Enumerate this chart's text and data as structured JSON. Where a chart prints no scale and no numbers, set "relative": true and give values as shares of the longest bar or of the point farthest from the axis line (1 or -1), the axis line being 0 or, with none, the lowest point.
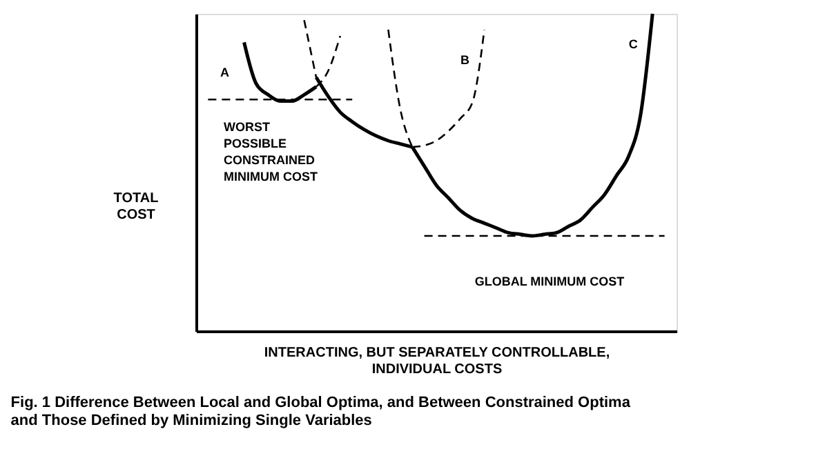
{
  "chart_data": {
    "type": "line",
    "relative": true,
    "title": "Fig. 1  Difference Between Local and Global Optima, and Between Constrained Optima\n          and Those Defined by Minimizing Single Variables",
    "xlabel": "INTERACTING, BUT SEPARATELY CONTROLLABLE,\nINDIVIDUAL COSTS",
    "ylabel": "TOTAL\nCOST",
    "tick_labels": false,
    "grid": false,
    "annotations": [
      "WORST\nPOSSIBLE\nCONSTRAINED\nMINIMUM COST",
      "GLOBAL MINIMUM COST"
    ],
    "categories": [
      null,
      null,
      null,
      null,
      null,
      null,
      null,
      null,
      null,
      null,
      null,
      null,
      null,
      null,
      null,
      null,
      null,
      null,
      null,
      null,
      null,
      null,
      null,
      null,
      null,
      null,
      null,
      null,
      null,
      null,
      null,
      null,
      null,
      null,
      null,
      null,
      null,
      null,
      null,
      null,
      null
    ],
    "series": [
      {
        "name": "A",
        "color": "#000000",
        "line_style": "solid",
        "values": [
          null,
          null,
          null,
          null,
          0.91,
          0.78,
          0.745,
          0.725,
          0.725,
          0.745,
          0.77,
          null,
          null,
          null,
          null,
          null,
          null,
          null,
          null,
          null,
          null,
          null,
          null,
          null,
          null,
          null,
          null,
          null,
          null,
          null,
          null,
          null,
          null,
          null,
          null,
          null,
          null,
          null,
          null,
          null,
          null
        ]
      },
      {
        "color": "#000000",
        "line_style": "dashed",
        "values": [
          null,
          null,
          null,
          null,
          null,
          null,
          null,
          null,
          null,
          null,
          0.77,
          0.82,
          0.93,
          null,
          null,
          null,
          null,
          null,
          null,
          null,
          null,
          null,
          null,
          null,
          null,
          null,
          null,
          null,
          null,
          null,
          null,
          null,
          null,
          null,
          null,
          null,
          null,
          null,
          null,
          null,
          null
        ]
      },
      {
        "color": "#000000",
        "line_style": "dashed",
        "values": [
          null,
          null,
          null,
          null,
          null,
          null,
          null,
          null,
          null,
          0.98,
          0.8,
          null,
          null,
          null,
          null,
          null,
          null,
          null,
          null,
          null,
          null,
          null,
          null,
          null,
          null,
          null,
          null,
          null,
          null,
          null,
          null,
          null,
          null,
          null,
          null,
          null,
          null,
          null,
          null,
          null,
          null
        ]
      },
      {
        "color": "#000000",
        "line_style": "solid",
        "values": [
          null,
          null,
          null,
          null,
          null,
          null,
          null,
          null,
          null,
          null,
          0.8,
          0.74,
          0.69,
          0.66,
          0.635,
          0.615,
          0.6,
          0.59,
          0.58,
          null,
          null,
          null,
          null,
          null,
          null,
          null,
          null,
          null,
          null,
          null,
          null,
          null,
          null,
          null,
          null,
          null,
          null,
          null,
          null,
          null,
          null
        ]
      },
      {
        "name": "B",
        "color": "#000000",
        "line_style": "dashed",
        "values": [
          null,
          null,
          null,
          null,
          null,
          null,
          null,
          null,
          null,
          null,
          null,
          null,
          null,
          null,
          null,
          null,
          null,
          null,
          0.58,
          0.585,
          0.6,
          0.63,
          0.67,
          0.72,
          0.95,
          null,
          null,
          null,
          null,
          null,
          null,
          null,
          null,
          null,
          null,
          null,
          null,
          null,
          null,
          null,
          null
        ]
      },
      {
        "color": "#000000",
        "line_style": "dashed",
        "values": [
          null,
          null,
          null,
          null,
          null,
          null,
          null,
          null,
          null,
          null,
          null,
          null,
          null,
          null,
          null,
          null,
          0.95,
          0.7,
          0.58,
          null,
          null,
          null,
          null,
          null,
          null,
          null,
          null,
          null,
          null,
          null,
          null,
          null,
          null,
          null,
          null,
          null,
          null,
          null,
          null,
          null,
          null
        ]
      },
      {
        "name": "C",
        "color": "#000000",
        "line_style": "solid",
        "values": [
          null,
          null,
          null,
          null,
          null,
          null,
          null,
          null,
          null,
          null,
          null,
          null,
          null,
          null,
          null,
          null,
          null,
          null,
          0.58,
          0.52,
          0.46,
          0.42,
          0.38,
          0.355,
          0.34,
          0.325,
          0.31,
          0.305,
          0.3,
          0.305,
          0.31,
          0.33,
          0.35,
          0.39,
          0.43,
          0.49,
          0.55,
          0.68,
          1.0,
          null,
          null
        ]
      },
      {
        "color": "#000000",
        "line_style": "dashed",
        "values": [
          null,
          0.73,
          0.73,
          0.73,
          0.73,
          0.73,
          0.73,
          0.73,
          0.73,
          0.73,
          0.73,
          0.73,
          0.73,
          0.73,
          null,
          null,
          null,
          null,
          null,
          null,
          null,
          null,
          null,
          null,
          null,
          null,
          null,
          null,
          null,
          null,
          null,
          null,
          null,
          null,
          null,
          null,
          null,
          null,
          null,
          null,
          null
        ]
      },
      {
        "color": "#000000",
        "line_style": "dashed",
        "values": [
          null,
          null,
          null,
          null,
          null,
          null,
          null,
          null,
          null,
          null,
          null,
          null,
          null,
          null,
          null,
          null,
          null,
          null,
          null,
          0.3,
          0.3,
          0.3,
          0.3,
          0.3,
          0.3,
          0.3,
          0.3,
          0.3,
          0.3,
          0.3,
          0.3,
          0.3,
          0.3,
          0.3,
          0.3,
          0.3,
          0.3,
          0.3,
          0.3,
          0.3,
          null
        ]
      }
    ]
  }
}
